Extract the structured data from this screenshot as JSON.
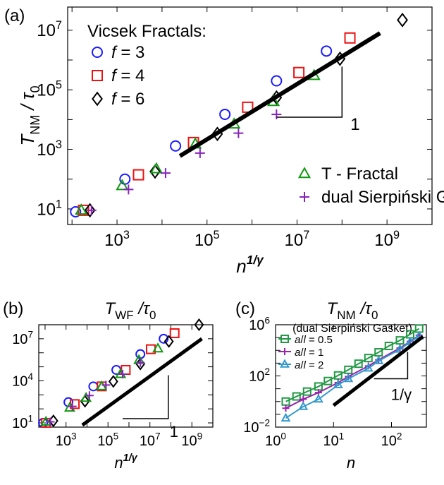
{
  "chart_data": [
    {
      "panel_label": "(a)",
      "type": "scatter",
      "log_x": true,
      "log_y": true,
      "xlim": [
        80,
        10000000000
      ],
      "ylim": [
        3,
        60000000
      ],
      "x_ticks": [
        {
          "value": 1000,
          "base": "10",
          "exp": "3"
        },
        {
          "value": 100000,
          "base": "10",
          "exp": "5"
        },
        {
          "value": 10000000,
          "base": "10",
          "exp": "7"
        },
        {
          "value": 1000000000,
          "base": "10",
          "exp": "9"
        }
      ],
      "y_ticks": [
        {
          "value": 10,
          "base": "10",
          "exp": "1"
        },
        {
          "value": 1000,
          "base": "10",
          "exp": "3"
        },
        {
          "value": 100000,
          "base": "10",
          "exp": "5"
        },
        {
          "value": 10000000,
          "base": "10",
          "exp": "7"
        }
      ],
      "xlabel": {
        "base": "n",
        "sup": "1/γ"
      },
      "ylabel": {
        "main": "T",
        "sub": "NM",
        "rest": " / τ",
        "sub2": "0"
      },
      "legend_title": "Vicsek Fractals:",
      "series": [
        {
          "name": "f = 3",
          "label_var": "f",
          "label_rest": " = 3",
          "marker": "circle",
          "color": "#1a1aff",
          "x": [
            120,
            1500,
            20000,
            250000,
            3500000,
            45000000
          ],
          "y": [
            8,
            100,
            1300,
            15000,
            200000,
            2000000
          ]
        },
        {
          "name": "f = 4",
          "label_var": "f",
          "label_rest": " = 4",
          "marker": "square",
          "color": "#ee1111",
          "x": [
            180,
            3000,
            50000,
            800000,
            11000000,
            150000000
          ],
          "y": [
            9,
            140,
            1700,
            26000,
            380000,
            5500000
          ]
        },
        {
          "name": "f = 6",
          "label_var": "f",
          "label_rest": " = 6",
          "marker": "diamond",
          "color": "#000000",
          "x": [
            250,
            7000,
            170000,
            3500000,
            90000000,
            2200000000
          ],
          "y": [
            9,
            180,
            3300,
            55000,
            1100000,
            22000000
          ]
        },
        {
          "name": "T - Fractal",
          "label_var": "",
          "label_rest": "T - Fractal",
          "marker": "triangle",
          "color": "#119911",
          "x": [
            160,
            1300,
            7500,
            55000,
            400000,
            3000000,
            24000000
          ],
          "y": [
            9,
            60,
            220,
            1500,
            7000,
            40000,
            300000
          ]
        },
        {
          "name": "dual Sierpiński Gasket",
          "label_var": "",
          "label_rest": "dual Sierpiński Gasket",
          "marker": "plus",
          "color": "#8822bb",
          "x": [
            270,
            1800,
            12000,
            70000,
            500000,
            3500000
          ],
          "y": [
            9,
            45,
            160,
            750,
            3500,
            15000
          ]
        }
      ],
      "fit_line": {
        "x": [
          25000,
          700000000
        ],
        "y": [
          600,
          8000000
        ]
      },
      "slope_triangle": {
        "label": "1",
        "x_left": 3500000,
        "x_right": 100000000,
        "y_bottom": 12000,
        "y_top": 600000
      }
    },
    {
      "panel_label": "(b)",
      "type": "scatter",
      "log_x": true,
      "log_y": true,
      "title": {
        "main": "T",
        "sub": "WF",
        "rest": " /τ",
        "sub2": "0"
      },
      "xlim": [
        50,
        10000000000
      ],
      "ylim": [
        5,
        100000000
      ],
      "x_ticks": [
        {
          "value": 1000,
          "base": "10",
          "exp": "3"
        },
        {
          "value": 100000,
          "base": "10",
          "exp": "5"
        },
        {
          "value": 10000000,
          "base": "10",
          "exp": "7"
        },
        {
          "value": 1000000000,
          "base": "10",
          "exp": "9"
        }
      ],
      "y_ticks": [
        {
          "value": 10,
          "base": "10",
          "exp": "1"
        },
        {
          "value": 10000,
          "base": "10",
          "exp": "4"
        },
        {
          "value": 10000000,
          "base": "10",
          "exp": "7"
        }
      ],
      "xlabel": {
        "base": "n",
        "sup": "1/γ"
      },
      "series": [
        {
          "name": "f = 3",
          "marker": "circle",
          "color": "#1a1aff",
          "x": [
            80,
            1300,
            20000,
            250000,
            3500000,
            45000000
          ],
          "y": [
            10,
            300,
            4000,
            60000,
            800000,
            10000000
          ]
        },
        {
          "name": "f = 4",
          "marker": "square",
          "color": "#ee1111",
          "x": [
            110,
            2600,
            50000,
            700000,
            11000000,
            150000000
          ],
          "y": [
            10,
            220,
            4000,
            60000,
            1800000,
            25000000
          ]
        },
        {
          "name": "f = 6",
          "marker": "diamond",
          "color": "#000000",
          "x": [
            250,
            8000,
            180000,
            3500000,
            80000000,
            2200000000
          ],
          "y": [
            14,
            350,
            9000,
            160000,
            6500000,
            100000000
          ]
        },
        {
          "name": "T - Fractal",
          "marker": "triangle",
          "color": "#119911",
          "x": [
            110,
            1500,
            9000,
            50000,
            400000,
            3000000,
            24000000
          ],
          "y": [
            12,
            120,
            600,
            4000,
            30000,
            300000,
            2000000
          ]
        },
        {
          "name": "dual Sierpiński Gasket",
          "marker": "plus",
          "color": "#8822bb",
          "x": [
            180,
            2000,
            13000,
            80000,
            500000,
            3500000
          ],
          "y": [
            12,
            150,
            900,
            5000,
            30000,
            200000
          ]
        }
      ],
      "fit_line": {
        "x": [
          6000,
          3000000000
        ],
        "y": [
          7,
          10000000
        ]
      },
      "slope_triangle": {
        "label": "1",
        "x_left": 500000,
        "x_right": 75000000,
        "y_bottom": 20,
        "y_top": 25000
      }
    },
    {
      "panel_label": "(c)",
      "type": "line",
      "log_x": true,
      "log_y": true,
      "title": {
        "main": "T",
        "sub": "NM",
        "rest": " /τ",
        "sub2": "0"
      },
      "subtitle": "(dual Sierpiński Gasket)",
      "xlim": [
        1,
        400
      ],
      "ylim": [
        0.01,
        1000000
      ],
      "x_ticks": [
        {
          "value": 1,
          "base": "10",
          "exp": "0"
        },
        {
          "value": 10,
          "base": "10",
          "exp": "1"
        },
        {
          "value": 100,
          "base": "10",
          "exp": "2"
        }
      ],
      "y_ticks": [
        {
          "value": 0.01,
          "base": "10",
          "exp": "−2"
        },
        {
          "value": 100,
          "base": "10",
          "exp": "2"
        },
        {
          "value": 1000000,
          "base": "10",
          "exp": "6"
        }
      ],
      "xlabel": {
        "base": "n",
        "sup": ""
      },
      "series": [
        {
          "name": "a/l = 0.5",
          "label_a": "a",
          "label_l": "l",
          "label_rest": " = 0.5",
          "marker": "square",
          "color": "#229944",
          "x": [
            1.5,
            2.3,
            3.5,
            5.5,
            8,
            12,
            18,
            27,
            40,
            60,
            90,
            140,
            210,
            300
          ],
          "y": [
            1,
            2.5,
            6,
            15,
            40,
            110,
            300,
            900,
            2500,
            7000,
            22000,
            60000,
            180000,
            500000
          ]
        },
        {
          "name": "a/l = 1",
          "label_a": "a",
          "label_l": "l",
          "label_rest": " = 1",
          "marker": "plus",
          "color": "#9922aa",
          "x": [
            1.5,
            3,
            5.5,
            12,
            18,
            40,
            60,
            140,
            210,
            300
          ],
          "y": [
            0.3,
            1.5,
            5,
            30,
            90,
            600,
            1800,
            15000,
            50000,
            150000
          ]
        },
        {
          "name": "a/l = 2",
          "label_a": "a",
          "label_l": "l",
          "label_rest": " = 2",
          "marker": "triangle",
          "color": "#3399cc",
          "x": [
            1.5,
            3,
            5.5,
            12,
            18,
            40,
            60,
            140,
            210,
            300
          ],
          "y": [
            0.05,
            0.4,
            1.5,
            20,
            60,
            400,
            1500,
            12000,
            45000,
            130000
          ]
        }
      ],
      "fit_line": {
        "x": [
          10,
          350
        ],
        "y": [
          0.5,
          120000
        ]
      },
      "slope_triangle": {
        "label": "1/γ",
        "x_left": 50,
        "x_right": 190,
        "y_bottom": 60,
        "y_top": 7500
      }
    }
  ]
}
